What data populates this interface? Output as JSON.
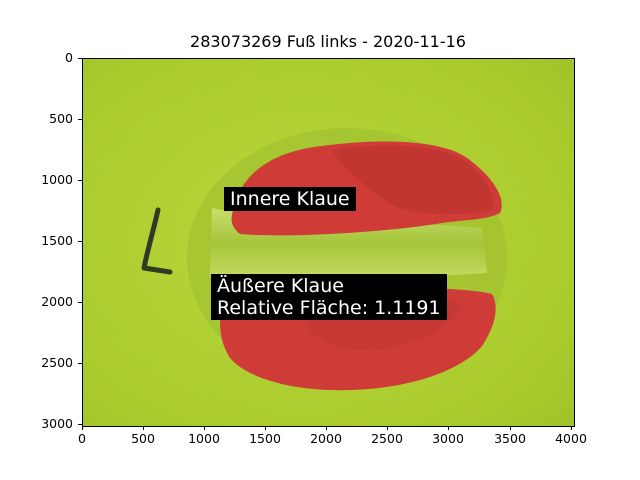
{
  "figure": {
    "title": "283073269 Fuß links - 2020-11-16",
    "colors": {
      "background": "#b3d434",
      "claw_overlay": "#cf3c37",
      "label_box": "#000000",
      "label_text": "#ffffff"
    }
  },
  "axes": {
    "x_ticks": [
      "0",
      "500",
      "1000",
      "1500",
      "2000",
      "2500",
      "3000",
      "3500",
      "4000"
    ],
    "y_ticks": [
      "0",
      "500",
      "1000",
      "1500",
      "2000",
      "2500",
      "3000"
    ],
    "x_range": [
      0,
      4032
    ],
    "y_range": [
      0,
      3024
    ]
  },
  "annotations": {
    "inner": "Innere Klaue",
    "outer_line1": "Äußere Klaue",
    "outer_line2": "Relative Fläche: 1.1191"
  },
  "image_description_icons": [
    "hoof-photo",
    "marker-letter-l"
  ]
}
